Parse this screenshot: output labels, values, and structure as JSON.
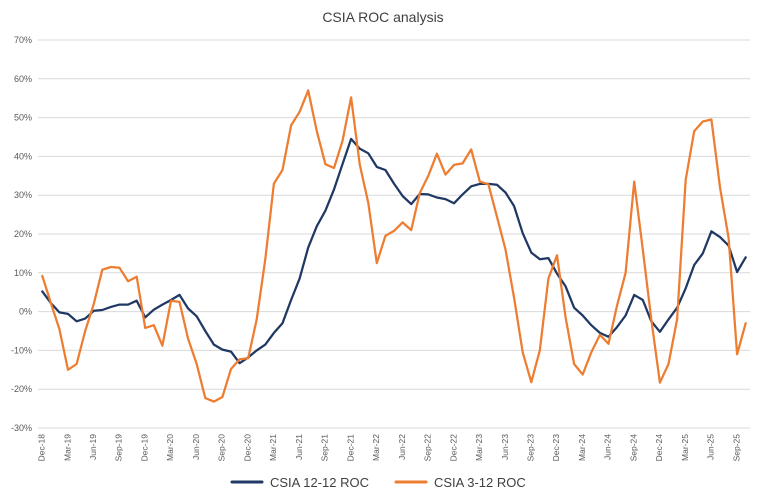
{
  "chart_data": {
    "type": "line",
    "title": "CSIA ROC analysis",
    "xlabel": "",
    "ylabel": "",
    "ylim": [
      -30,
      70
    ],
    "yticks": [
      "-30%",
      "-20%",
      "-10%",
      "0%",
      "10%",
      "20%",
      "30%",
      "40%",
      "50%",
      "60%",
      "70%"
    ],
    "grid": "horizontal",
    "legend": "bottom",
    "categories": [
      "Dec-18",
      "Jan-19",
      "Feb-19",
      "Mar-19",
      "Apr-19",
      "May-19",
      "Jun-19",
      "Jul-19",
      "Aug-19",
      "Sep-19",
      "Oct-19",
      "Nov-19",
      "Dec-19",
      "Jan-20",
      "Feb-20",
      "Mar-20",
      "Apr-20",
      "May-20",
      "Jun-20",
      "Jul-20",
      "Aug-20",
      "Sep-20",
      "Oct-20",
      "Nov-20",
      "Dec-20",
      "Jan-21",
      "Feb-21",
      "Mar-21",
      "Apr-21",
      "May-21",
      "Jun-21",
      "Jul-21",
      "Aug-21",
      "Sep-21",
      "Oct-21",
      "Nov-21",
      "Dec-21",
      "Jan-22",
      "Feb-22",
      "Mar-22",
      "Apr-22",
      "May-22",
      "Jun-22",
      "Jul-22",
      "Aug-22",
      "Sep-22",
      "Oct-22",
      "Nov-22",
      "Dec-22",
      "Jan-23",
      "Feb-23",
      "Mar-23",
      "Apr-23",
      "May-23",
      "Jun-23",
      "Jul-23",
      "Aug-23",
      "Sep-23",
      "Oct-23",
      "Nov-23",
      "Dec-23",
      "Jan-24",
      "Feb-24",
      "Mar-24",
      "Apr-24",
      "May-24",
      "Jun-24",
      "Jul-24",
      "Aug-24",
      "Sep-24",
      "Oct-24",
      "Nov-24",
      "Dec-24",
      "Jan-25",
      "Feb-25",
      "Mar-25",
      "Apr-25",
      "May-25",
      "Jun-25",
      "Jul-25",
      "Aug-25",
      "Sep-25",
      "Oct-25"
    ],
    "xtick_labels": [
      "Dec-18",
      "Mar-19",
      "Jun-19",
      "Sep-19",
      "Dec-19",
      "Mar-20",
      "Jun-20",
      "Sep-20",
      "Dec-20",
      "Mar-21",
      "Jun-21",
      "Sep-21",
      "Dec-21",
      "Mar-22",
      "Jun-22",
      "Sep-22",
      "Dec-22",
      "Mar-23",
      "Jun-23",
      "Sep-23",
      "Dec-23",
      "Mar-24",
      "Jun-24",
      "Sep-24",
      "Dec-24",
      "Mar-25",
      "Jun-25",
      "Sep-25"
    ],
    "series": [
      {
        "name": "CSIA 12-12 ROC",
        "color": "#203864",
        "values": [
          5.2,
          2.2,
          -0.2,
          -0.6,
          -2.5,
          -1.8,
          0.2,
          0.4,
          1.2,
          1.8,
          1.8,
          2.8,
          -1.5,
          0.5,
          1.8,
          3.0,
          4.3,
          0.8,
          -1.2,
          -5.0,
          -8.5,
          -9.8,
          -10.3,
          -13.3,
          -11.8,
          -10.0,
          -8.5,
          -5.5,
          -3.0,
          3.0,
          8.5,
          16.5,
          22.0,
          26.0,
          31.5,
          38.0,
          44.5,
          42.0,
          40.8,
          37.3,
          36.5,
          33.0,
          29.8,
          27.7,
          30.3,
          30.2,
          29.4,
          29.0,
          27.9,
          30.2,
          32.3,
          32.9,
          32.9,
          32.7,
          30.7,
          27.2,
          20.2,
          15.2,
          13.5,
          13.8,
          9.8,
          6.5,
          1.0,
          -1.0,
          -3.5,
          -5.5,
          -6.5,
          -4.0,
          -1.0,
          4.3,
          3.0,
          -2.5,
          -5.2,
          -2.0,
          1.0,
          6.0,
          12.0,
          15.0,
          20.7,
          19.2,
          17.0,
          10.2,
          14.0
        ]
      },
      {
        "name": "CSIA 3-12 ROC",
        "color": "#ED7D31",
        "values": [
          9.2,
          2.2,
          -4.5,
          -15.0,
          -13.5,
          -5.0,
          2.0,
          10.8,
          11.5,
          11.3,
          7.8,
          9.0,
          -4.2,
          -3.5,
          -8.8,
          2.8,
          2.5,
          -7.0,
          -13.5,
          -22.3,
          -23.2,
          -22.0,
          -14.8,
          -12.3,
          -12.0,
          -2.0,
          13.5,
          33.0,
          36.5,
          48.0,
          51.5,
          57.0,
          46.5,
          38.0,
          37.0,
          44.0,
          55.2,
          38.0,
          28.0,
          12.5,
          19.5,
          20.8,
          23.0,
          21.0,
          30.5,
          35.0,
          40.7,
          35.3,
          37.8,
          38.2,
          41.8,
          33.5,
          32.8,
          24.5,
          16.0,
          3.5,
          -10.5,
          -18.2,
          -10.0,
          8.5,
          14.5,
          -1.5,
          -13.5,
          -16.2,
          -10.5,
          -6.0,
          -8.3,
          1.5,
          10.0,
          33.5,
          16.0,
          -2.0,
          -18.3,
          -13.5,
          -2.0,
          34.0,
          46.5,
          49.0,
          49.5,
          32.0,
          19.0,
          -11.0,
          -3.0
        ]
      }
    ]
  }
}
